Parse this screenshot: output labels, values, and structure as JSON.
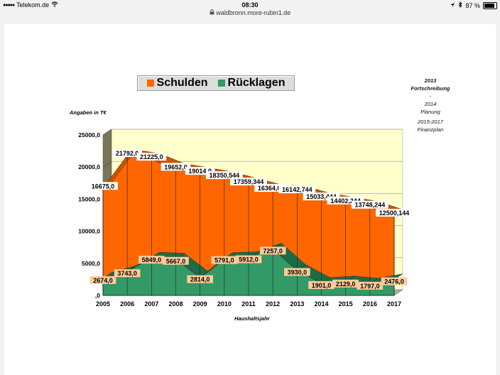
{
  "status_bar": {
    "carrier": "Telekom.de",
    "time": "08:30",
    "battery": "87 %",
    "battery_level": 0.87
  },
  "browser": {
    "url": "waldbronn.more-rubin1.de"
  },
  "chart_data": {
    "type": "area",
    "categories": [
      "2005",
      "2006",
      "2007",
      "2008",
      "2009",
      "2010",
      "2011",
      "2012",
      "2013",
      "2014",
      "2015",
      "2016",
      "2017"
    ],
    "series": [
      {
        "name": "Schulden",
        "color": "#ff6600",
        "values": [
          16675.0,
          21792.0,
          21225.0,
          19652.0,
          19014.0,
          18350.544,
          17359.344,
          16364.644,
          16142.744,
          15033.444,
          14402.244,
          13748.244,
          12500.144
        ],
        "labels": [
          "16675,0",
          "21792,0",
          "21225,0",
          "19652,0",
          "19014,0",
          "18350,544",
          "17359,344",
          "16364,644",
          "16142,744",
          "15033,444",
          "14402,244",
          "13748,244",
          "12500,144"
        ]
      },
      {
        "name": "Rücklagen",
        "color": "#339966",
        "values": [
          2674.0,
          3743.0,
          5849.0,
          5667.0,
          2814.0,
          5791.0,
          5912.0,
          7257.0,
          3930.0,
          1901.0,
          2129.0,
          1797.0,
          2476.0
        ],
        "labels": [
          "2674,0",
          "3743,0",
          "5849,0",
          "5667,0",
          "2814,0",
          "5791,0",
          "5912,0",
          "7257,0",
          "3930,0",
          "1901,0",
          "2129,0",
          "1797,0",
          "2476,0"
        ]
      }
    ],
    "ylabel": "Angaben in T€",
    "xlabel": "Haushaltsjahr",
    "ylim": [
      0,
      25000
    ],
    "yticks": [
      0,
      5000,
      10000,
      15000,
      20000,
      25000
    ],
    "ytick_labels": [
      ",0",
      "5000,0",
      "10000,0",
      "15000,0",
      "20000,0",
      "25000,0"
    ],
    "background": "#ffffcc",
    "legend_position": "top"
  },
  "note": {
    "line1": "2013",
    "line2": "Fortschreibung",
    "line3": "-",
    "line4": "2014",
    "line5": "Planung",
    "line6": "2015-2017",
    "line7": "Finanzplan"
  }
}
